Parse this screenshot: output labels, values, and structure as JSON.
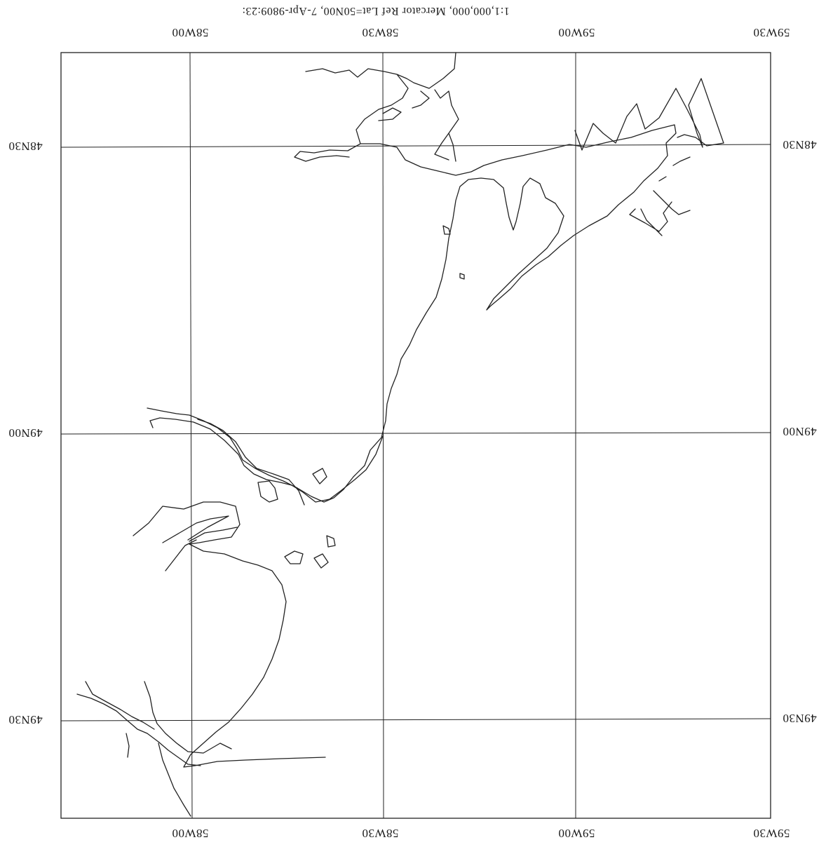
{
  "caption": "1:1,000,000, Mercator   Ref Lat=50N00,  7-Apr-9809:23:",
  "longitude_labels": [
    "59W30",
    "59W00",
    "58W30",
    "58W00"
  ],
  "latitude_labels": [
    "49N30",
    "49N00",
    "48N30"
  ]
}
